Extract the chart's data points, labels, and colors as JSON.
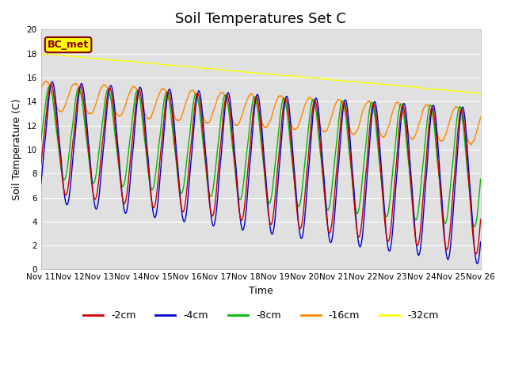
{
  "title": "Soil Temperatures Set C",
  "xlabel": "Time",
  "ylabel": "Soil Temperature (C)",
  "ylim": [
    0,
    20
  ],
  "yticks": [
    0,
    2,
    4,
    6,
    8,
    10,
    12,
    14,
    16,
    18,
    20
  ],
  "series": {
    "-2cm": {
      "color": "#cc0000"
    },
    "-4cm": {
      "color": "#0000cc"
    },
    "-8cm": {
      "color": "#00bb00"
    },
    "-16cm": {
      "color": "#ff8800"
    },
    "-32cm": {
      "color": "#ffff00"
    }
  },
  "legend_label": "BC_met",
  "legend_box_facecolor": "#ffff00",
  "legend_box_edgecolor": "#8B0000",
  "plot_bg_color": "#e0e0e0",
  "grid_color": "#ffffff",
  "title_fontsize": 13,
  "label_fontsize": 9,
  "tick_fontsize": 7.5
}
